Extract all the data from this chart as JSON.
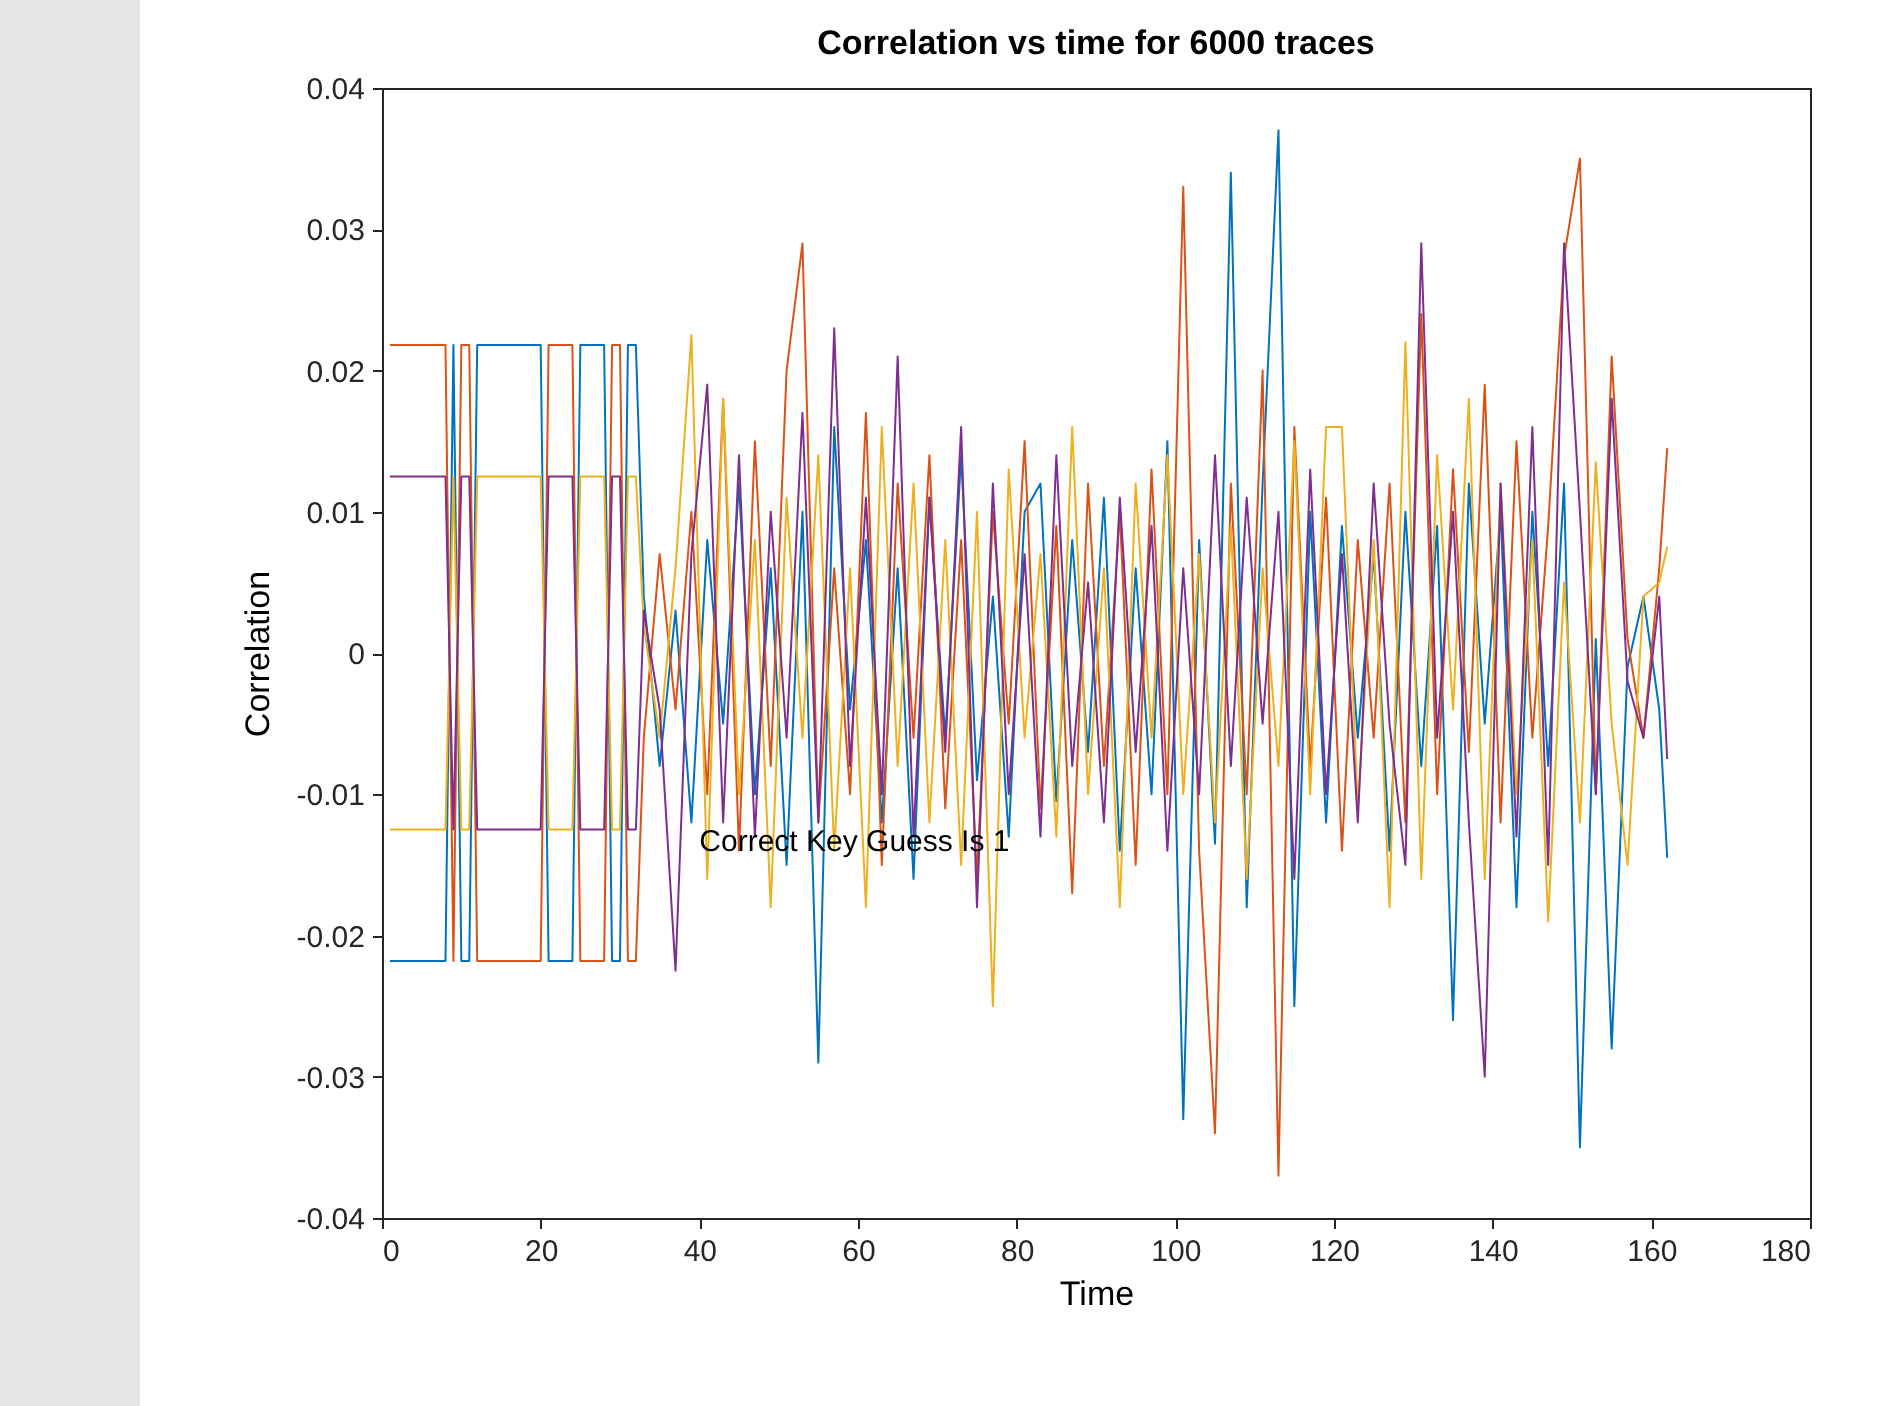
{
  "chart_data": {
    "type": "line",
    "title": "Correlation vs time for 6000 traces",
    "xlabel": "Time",
    "ylabel": "Correlation",
    "x": [
      1,
      8,
      9,
      10,
      11,
      12,
      20,
      21,
      24,
      25,
      28,
      29,
      30,
      31,
      32,
      33,
      35,
      37,
      39,
      41,
      43,
      45,
      47,
      49,
      51,
      53,
      55,
      57,
      59,
      61,
      63,
      65,
      67,
      69,
      71,
      73,
      75,
      77,
      79,
      81,
      83,
      85,
      87,
      89,
      91,
      93,
      95,
      97,
      99,
      101,
      103,
      105,
      107,
      109,
      111,
      113,
      115,
      117,
      119,
      121,
      123,
      125,
      127,
      129,
      131,
      133,
      135,
      137,
      139,
      141,
      143,
      145,
      147,
      149,
      151,
      153,
      155,
      157,
      159,
      161,
      162
    ],
    "series": [
      {
        "color": "#0072bd",
        "values": [
          -0.0218,
          -0.0218,
          0.0218,
          -0.0218,
          -0.0218,
          0.0218,
          0.0218,
          -0.0218,
          -0.0218,
          0.0218,
          0.0218,
          -0.0218,
          -0.0218,
          0.0218,
          0.0218,
          0.004,
          -0.008,
          0.003,
          -0.012,
          0.008,
          -0.005,
          0.012,
          -0.01,
          0.006,
          -0.015,
          0.01,
          -0.029,
          0.016,
          -0.004,
          0.008,
          -0.012,
          0.006,
          -0.016,
          0.011,
          -0.006,
          0.014,
          -0.009,
          0.004,
          -0.013,
          0.01,
          0.012,
          -0.0105,
          0.008,
          -0.007,
          0.011,
          -0.014,
          0.006,
          -0.01,
          0.015,
          -0.033,
          0.008,
          -0.0135,
          0.034,
          -0.018,
          0.012,
          0.037,
          -0.025,
          0.01,
          -0.012,
          0.009,
          -0.006,
          0.007,
          -0.014,
          0.01,
          -0.008,
          0.009,
          -0.026,
          0.012,
          -0.005,
          0.01,
          -0.018,
          0.01,
          -0.008,
          0.012,
          -0.035,
          0.001,
          -0.028,
          -0.001,
          0.004,
          -0.004,
          -0.0145
        ]
      },
      {
        "color": "#d95319",
        "values": [
          0.0218,
          0.0218,
          -0.0218,
          0.0218,
          0.0218,
          -0.0218,
          -0.0218,
          0.0218,
          0.0218,
          -0.0218,
          -0.0218,
          0.0218,
          0.0218,
          -0.0218,
          -0.0218,
          -0.006,
          0.007,
          -0.004,
          0.01,
          -0.01,
          0.018,
          -0.014,
          0.015,
          -0.008,
          0.02,
          0.029,
          -0.012,
          0.006,
          -0.01,
          0.017,
          -0.015,
          0.012,
          -0.006,
          0.014,
          -0.011,
          0.008,
          -0.016,
          0.01,
          -0.005,
          0.015,
          -0.011,
          0.009,
          -0.017,
          0.012,
          -0.008,
          0.01,
          -0.015,
          0.013,
          -0.01,
          0.033,
          -0.014,
          -0.034,
          0.012,
          -0.01,
          0.02,
          -0.037,
          0.016,
          -0.008,
          0.011,
          -0.014,
          0.008,
          -0.006,
          0.012,
          -0.012,
          0.024,
          -0.01,
          0.013,
          -0.007,
          0.019,
          -0.012,
          0.015,
          -0.006,
          0.009,
          0.028,
          0.035,
          -0.01,
          0.021,
          0.001,
          -0.006,
          0.006,
          0.0145
        ]
      },
      {
        "color": "#edb120",
        "values": [
          -0.0125,
          -0.0125,
          0.0125,
          -0.0125,
          -0.0125,
          0.0125,
          0.0125,
          -0.0125,
          -0.0125,
          0.0125,
          0.0125,
          -0.0125,
          -0.0125,
          0.0125,
          0.0125,
          0.002,
          -0.006,
          0.006,
          0.0225,
          -0.016,
          0.018,
          -0.01,
          0.008,
          -0.018,
          0.011,
          -0.006,
          0.014,
          -0.014,
          0.006,
          -0.018,
          0.016,
          -0.008,
          0.012,
          -0.012,
          0.008,
          -0.015,
          0.01,
          -0.025,
          0.013,
          -0.006,
          0.007,
          -0.013,
          0.016,
          -0.01,
          0.006,
          -0.018,
          0.012,
          -0.006,
          0.014,
          -0.01,
          0.007,
          -0.012,
          0.009,
          -0.016,
          0.006,
          -0.008,
          0.015,
          -0.01,
          0.016,
          0.016,
          -0.011,
          0.008,
          -0.018,
          0.022,
          -0.016,
          0.014,
          -0.004,
          0.018,
          -0.016,
          0.012,
          -0.01,
          0.008,
          -0.019,
          0.005,
          -0.012,
          0.0135,
          -0.005,
          -0.015,
          0.004,
          0.005,
          0.0075
        ]
      },
      {
        "color": "#7e2f8e",
        "values": [
          0.0125,
          0.0125,
          -0.0125,
          0.0125,
          0.0125,
          -0.0125,
          -0.0125,
          0.0125,
          0.0125,
          -0.0125,
          -0.0125,
          0.0125,
          0.0125,
          -0.0125,
          -0.0125,
          0.003,
          -0.004,
          -0.0225,
          0.007,
          0.019,
          -0.012,
          0.014,
          -0.013,
          0.01,
          -0.006,
          0.017,
          -0.012,
          0.023,
          -0.008,
          0.011,
          -0.01,
          0.021,
          -0.013,
          0.011,
          -0.007,
          0.016,
          -0.018,
          0.012,
          -0.01,
          0.007,
          -0.013,
          0.014,
          -0.008,
          0.005,
          -0.012,
          0.011,
          -0.007,
          0.009,
          -0.014,
          0.006,
          -0.01,
          0.014,
          -0.008,
          0.011,
          -0.005,
          0.01,
          -0.016,
          0.013,
          -0.01,
          0.007,
          -0.012,
          0.012,
          -0.005,
          -0.015,
          0.029,
          -0.006,
          0.01,
          -0.012,
          -0.03,
          0.012,
          -0.013,
          0.016,
          -0.015,
          0.029,
          0.01,
          -0.01,
          0.018,
          -0.002,
          -0.006,
          0.004,
          -0.0075
        ]
      }
    ],
    "xlim": [
      0,
      180
    ],
    "xticks": [
      0,
      20,
      40,
      60,
      80,
      100,
      120,
      140,
      160,
      180
    ],
    "ylim": [
      -0.04,
      0.04
    ],
    "yticks": [
      -0.04,
      -0.03,
      -0.02,
      -0.01,
      0,
      0.01,
      0.02,
      0.03,
      0.04
    ],
    "annotations": [
      {
        "text": "Correct Key Guess Is 1",
        "x": 40,
        "y": -0.0133
      }
    ],
    "grid": false
  }
}
